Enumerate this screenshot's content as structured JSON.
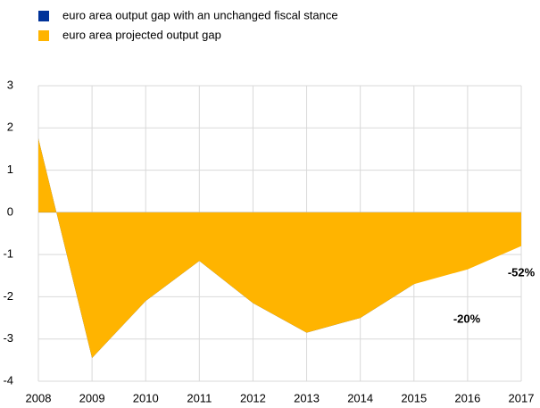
{
  "chart_data": {
    "type": "area",
    "x": [
      2008,
      2009,
      2010,
      2011,
      2012,
      2013,
      2014,
      2015,
      2016,
      2017
    ],
    "series": [
      {
        "name": "euro area output gap with an unchanged fiscal stance",
        "color": "#003299",
        "values": [
          1.75,
          -3.45,
          -2.1,
          -1.15,
          -2.15,
          -2.85,
          -2.5,
          -1.7,
          -1.15,
          -0.45
        ]
      },
      {
        "name": "euro area projected output gap",
        "color": "#ffb400",
        "values": [
          1.75,
          -3.45,
          -2.1,
          -1.15,
          -2.15,
          -2.85,
          -2.5,
          -1.7,
          -1.35,
          -0.8
        ]
      }
    ],
    "xlim": [
      2008,
      2017
    ],
    "xticks": [
      2008,
      2009,
      2010,
      2011,
      2012,
      2013,
      2014,
      2015,
      2016,
      2017
    ],
    "ylim": [
      -4,
      3
    ],
    "yticks": [
      -4,
      -3,
      -2,
      -1,
      0,
      1,
      2,
      3
    ],
    "grid": true,
    "annotations": [
      "-20%",
      "-52%"
    ]
  }
}
